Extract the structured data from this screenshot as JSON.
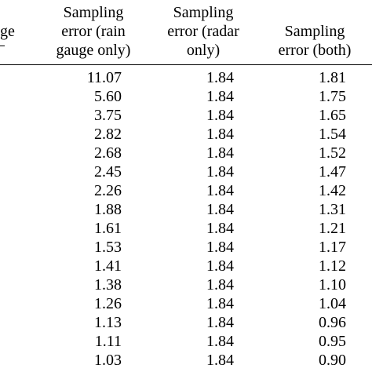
{
  "table": {
    "first_header_fragment": {
      "lines": [
        "ge",
        ""
      ]
    },
    "headers": [
      {
        "lines": [
          "Sampling",
          "error (rain",
          "gauge only)"
        ]
      },
      {
        "lines": [
          "Sampling",
          "error (radar",
          "only)"
        ]
      },
      {
        "lines": [
          "Sampling",
          "error (both)"
        ]
      }
    ],
    "rows": [
      [
        "11.07",
        "1.84",
        "1.81"
      ],
      [
        "5.60",
        "1.84",
        "1.75"
      ],
      [
        "3.75",
        "1.84",
        "1.65"
      ],
      [
        "2.82",
        "1.84",
        "1.54"
      ],
      [
        "2.68",
        "1.84",
        "1.52"
      ],
      [
        "2.45",
        "1.84",
        "1.47"
      ],
      [
        "2.26",
        "1.84",
        "1.42"
      ],
      [
        "1.88",
        "1.84",
        "1.31"
      ],
      [
        "1.61",
        "1.84",
        "1.21"
      ],
      [
        "1.53",
        "1.84",
        "1.17"
      ],
      [
        "1.41",
        "1.84",
        "1.12"
      ],
      [
        "1.38",
        "1.84",
        "1.10"
      ],
      [
        "1.26",
        "1.84",
        "1.04"
      ],
      [
        "1.13",
        "1.84",
        "0.96"
      ],
      [
        "1.11",
        "1.84",
        "0.95"
      ],
      [
        "1.03",
        "1.84",
        "0.90"
      ]
    ]
  }
}
